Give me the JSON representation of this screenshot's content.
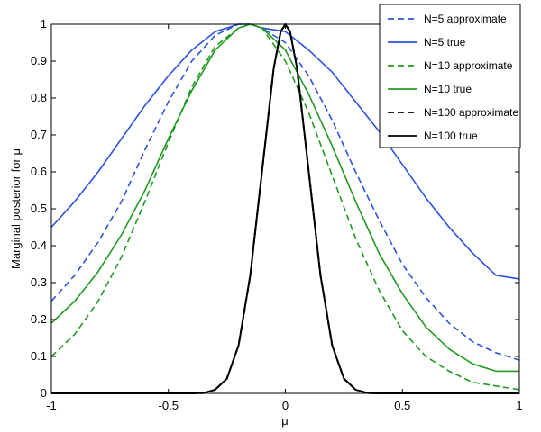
{
  "chart_data": {
    "type": "line",
    "title": "",
    "xlabel": "μ",
    "ylabel": "Marginal posterior for μ",
    "xlim": [
      -1,
      1
    ],
    "ylim": [
      0,
      1
    ],
    "xticks": [
      -1,
      -0.5,
      0,
      0.5,
      1
    ],
    "xtick_labels": [
      "-1",
      "-0.5",
      "0",
      "0.5",
      "1"
    ],
    "yticks": [
      0,
      0.1,
      0.2,
      0.3,
      0.4,
      0.5,
      0.6,
      0.7,
      0.8,
      0.9,
      1
    ],
    "ytick_labels": [
      "0",
      "0.1",
      "0.2",
      "0.3",
      "0.4",
      "0.5",
      "0.6",
      "0.7",
      "0.8",
      "0.9",
      "1"
    ],
    "grid": false,
    "legend_position": "top-right",
    "x": [
      -1,
      -0.9,
      -0.8,
      -0.7,
      -0.6,
      -0.5,
      -0.4,
      -0.3,
      -0.2,
      -0.15,
      -0.1,
      0,
      0.1,
      0.2,
      0.3,
      0.4,
      0.5,
      0.6,
      0.7,
      0.8,
      0.9,
      1
    ],
    "series": [
      {
        "name": "N=5 approximate",
        "color": "#2a52e0",
        "style": "dashed",
        "values": [
          0.25,
          0.32,
          0.41,
          0.52,
          0.66,
          0.79,
          0.9,
          0.97,
          1.0,
          1.0,
          0.99,
          0.95,
          0.86,
          0.74,
          0.6,
          0.47,
          0.35,
          0.26,
          0.19,
          0.14,
          0.11,
          0.09
        ]
      },
      {
        "name": "N=5 true",
        "color": "#2a52e0",
        "style": "solid",
        "values": [
          0.45,
          0.52,
          0.6,
          0.69,
          0.78,
          0.86,
          0.93,
          0.98,
          1.0,
          1.0,
          0.99,
          0.98,
          0.93,
          0.87,
          0.79,
          0.71,
          0.62,
          0.53,
          0.45,
          0.38,
          0.32,
          0.31
        ]
      },
      {
        "name": "N=10 approximate",
        "color": "#1f9a1f",
        "style": "dashed",
        "values": [
          0.1,
          0.16,
          0.25,
          0.37,
          0.52,
          0.68,
          0.83,
          0.94,
          0.99,
          1.0,
          0.99,
          0.9,
          0.76,
          0.59,
          0.42,
          0.28,
          0.17,
          0.1,
          0.06,
          0.03,
          0.02,
          0.01
        ]
      },
      {
        "name": "N=10 true",
        "color": "#1f9a1f",
        "style": "solid",
        "values": [
          0.19,
          0.25,
          0.33,
          0.43,
          0.55,
          0.69,
          0.82,
          0.93,
          0.99,
          1.0,
          0.99,
          0.93,
          0.81,
          0.67,
          0.52,
          0.38,
          0.27,
          0.18,
          0.12,
          0.08,
          0.06,
          0.06
        ]
      },
      {
        "name": "N=100 approximate",
        "color": "#000000",
        "style": "dashed",
        "x": [
          -1,
          -0.4,
          -0.35,
          -0.3,
          -0.25,
          -0.2,
          -0.15,
          -0.1,
          -0.05,
          -0.02,
          0,
          0.02,
          0.05,
          0.1,
          0.15,
          0.2,
          0.25,
          0.3,
          0.35,
          0.4,
          1
        ],
        "values": [
          0,
          0,
          0.001,
          0.01,
          0.04,
          0.13,
          0.32,
          0.6,
          0.88,
          0.98,
          1.0,
          0.98,
          0.88,
          0.6,
          0.32,
          0.13,
          0.04,
          0.01,
          0.001,
          0,
          0
        ]
      },
      {
        "name": "N=100 true",
        "color": "#000000",
        "style": "solid",
        "x": [
          -1,
          -0.4,
          -0.35,
          -0.3,
          -0.25,
          -0.2,
          -0.15,
          -0.1,
          -0.05,
          -0.02,
          0,
          0.02,
          0.05,
          0.1,
          0.15,
          0.2,
          0.25,
          0.3,
          0.35,
          0.4,
          1
        ],
        "values": [
          0,
          0,
          0.001,
          0.01,
          0.04,
          0.13,
          0.32,
          0.6,
          0.88,
          0.98,
          1.0,
          0.98,
          0.88,
          0.6,
          0.32,
          0.13,
          0.04,
          0.01,
          0.001,
          0,
          0
        ]
      }
    ]
  }
}
